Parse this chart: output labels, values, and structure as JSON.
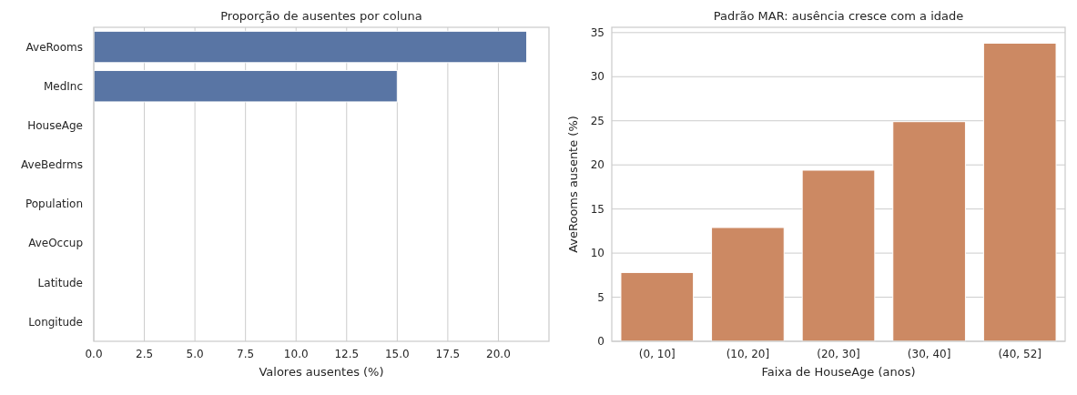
{
  "chart_data": [
    {
      "type": "bar",
      "title": "Proporção de ausentes por coluna",
      "xlabel": "Valores ausentes (%)",
      "orientation": "horizontal",
      "categories": [
        "AveRooms",
        "MedInc",
        "HouseAge",
        "AveBedrms",
        "Population",
        "AveOccup",
        "Latitude",
        "Longitude"
      ],
      "values": [
        21.4,
        15.0,
        0,
        0,
        0,
        0,
        0,
        0
      ],
      "color": "#5975a4",
      "xlim": [
        0,
        22.5
      ],
      "xticks": [
        {
          "value": 0,
          "label": "0.0"
        },
        {
          "value": 2.5,
          "label": "2.5"
        },
        {
          "value": 5,
          "label": "5.0"
        },
        {
          "value": 7.5,
          "label": "7.5"
        },
        {
          "value": 10,
          "label": "10.0"
        },
        {
          "value": 12.5,
          "label": "12.5"
        },
        {
          "value": 15,
          "label": "15.0"
        },
        {
          "value": 17.5,
          "label": "17.5"
        },
        {
          "value": 20,
          "label": "20.0"
        }
      ],
      "grid": "x"
    },
    {
      "type": "bar",
      "title": "Padrão MAR: ausência cresce com a idade",
      "xlabel": "Faixa de HouseAge (anos)",
      "ylabel": "AveRooms ausente (%)",
      "categories": [
        "(0, 10]",
        "(10, 20]",
        "(20, 30]",
        "(30, 40]",
        "(40, 52]"
      ],
      "values": [
        7.8,
        12.9,
        19.4,
        24.9,
        33.8
      ],
      "color": "#cc8963",
      "ylim": [
        0,
        35.6
      ],
      "yticks": [
        0,
        5,
        10,
        15,
        20,
        25,
        30,
        35
      ],
      "grid": "y"
    }
  ]
}
